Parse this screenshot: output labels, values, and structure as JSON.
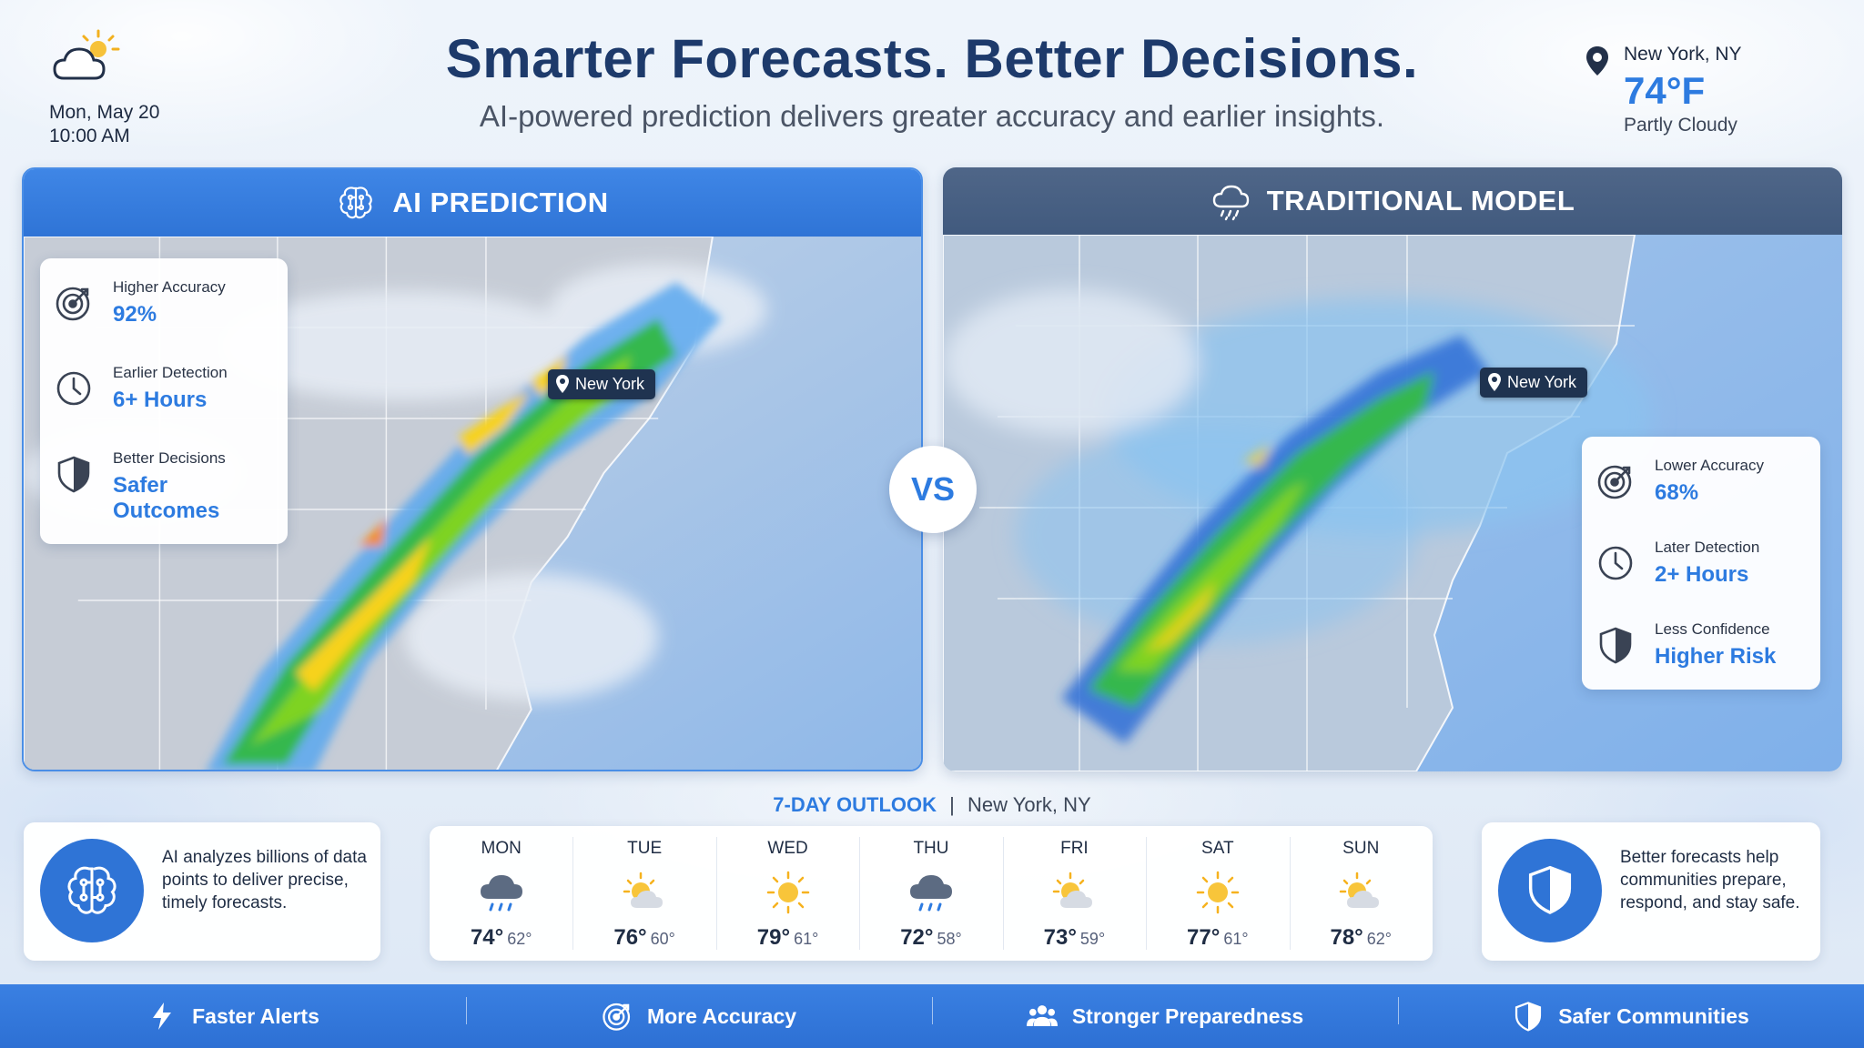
{
  "header": {
    "title": "Smarter Forecasts. Better Decisions.",
    "subtitle": "AI-powered prediction delivers greater accuracy and earlier insights."
  },
  "current": {
    "date": "Mon, May 20",
    "time": "10:00 AM",
    "location": "New York, NY",
    "temperature": "74°F",
    "condition": "Partly Cloudy",
    "icon": "partly-cloudy-icon"
  },
  "ai_panel": {
    "title": "AI PREDICTION",
    "icon": "brain-icon",
    "map_label": "New York",
    "stats": [
      {
        "label": "Higher Accuracy",
        "value": "92%",
        "icon": "target-icon"
      },
      {
        "label": "Earlier Detection",
        "value": "6+ Hours",
        "icon": "clock-icon"
      },
      {
        "label": "Better Decisions",
        "value": "Safer Outcomes",
        "icon": "shield-icon"
      }
    ]
  },
  "trad_panel": {
    "title": "TRADITIONAL MODEL",
    "icon": "cloud-rain-icon",
    "map_label": "New York",
    "stats": [
      {
        "label": "Lower Accuracy",
        "value": "68%",
        "icon": "target-icon"
      },
      {
        "label": "Later Detection",
        "value": "2+ Hours",
        "icon": "clock-icon"
      },
      {
        "label": "Less Confidence",
        "value": "Higher Risk",
        "icon": "shield-icon"
      }
    ]
  },
  "vs_label": "VS",
  "outlook": {
    "title": "7-DAY OUTLOOK",
    "separator": "|",
    "location": "New York, NY",
    "days": [
      {
        "name": "MON",
        "high": "74°",
        "low": "62°",
        "icon": "rain-icon"
      },
      {
        "name": "TUE",
        "high": "76°",
        "low": "60°",
        "icon": "partly-cloudy-icon"
      },
      {
        "name": "WED",
        "high": "79°",
        "low": "61°",
        "icon": "sun-icon"
      },
      {
        "name": "THU",
        "high": "72°",
        "low": "58°",
        "icon": "rain-icon"
      },
      {
        "name": "FRI",
        "high": "73°",
        "low": "59°",
        "icon": "partly-cloudy-icon"
      },
      {
        "name": "SAT",
        "high": "77°",
        "low": "61°",
        "icon": "sun-icon"
      },
      {
        "name": "SUN",
        "high": "78°",
        "low": "62°",
        "icon": "partly-cloudy-icon"
      }
    ]
  },
  "info_left": {
    "text": "AI analyzes billions of data points to deliver precise, timely forecasts.",
    "icon": "brain-icon"
  },
  "info_right": {
    "text": "Better forecasts help communities prepare, respond, and stay safe.",
    "icon": "shield-icon"
  },
  "footer": [
    {
      "label": "Faster Alerts",
      "icon": "lightning-icon"
    },
    {
      "label": "More Accuracy",
      "icon": "target-icon"
    },
    {
      "label": "Stronger Preparedness",
      "icon": "people-icon"
    },
    {
      "label": "Safer Communities",
      "icon": "shield-icon"
    }
  ],
  "colors": {
    "accent": "#2d7be0",
    "ai_header": "#3a80e2",
    "trad_header": "#4a6184",
    "title": "#1d3a6b"
  }
}
